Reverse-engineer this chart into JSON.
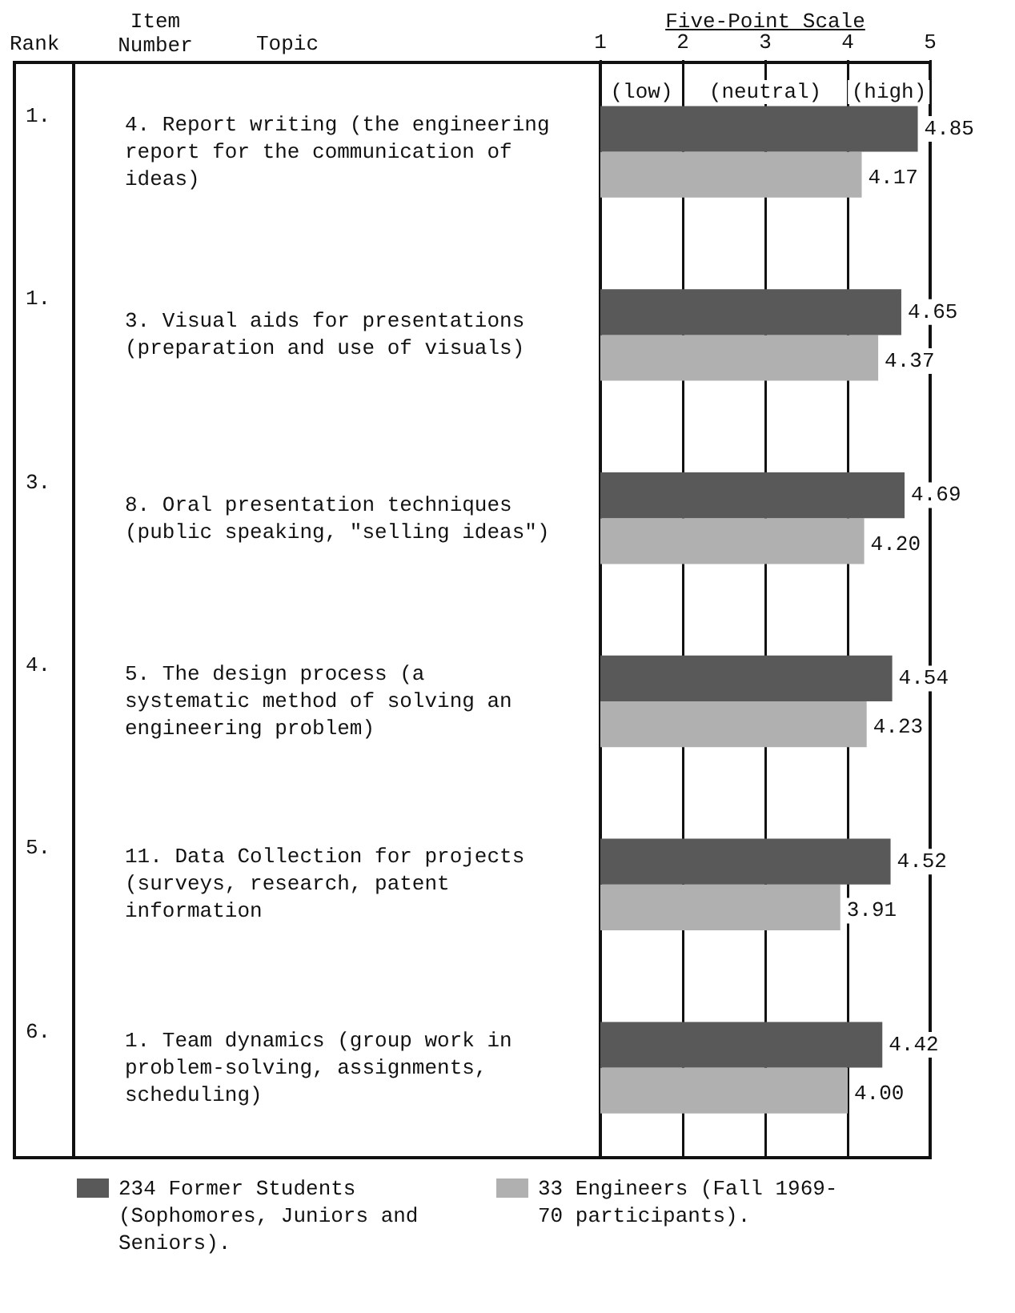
{
  "chart_data": {
    "type": "bar",
    "orientation": "horizontal",
    "xlabel": "Five-Point Scale",
    "categories": [
      "4. Report writing (the engineering report for the communication of ideas)",
      "3. Visual aids for presentations (preparation and use of visuals)",
      "8. Oral presentation techniques (public speaking, \"selling ideas\")",
      "5. The design process (a systematic method of solving an engineering problem)",
      "11. Data Collection for projects (surveys, research, patent information",
      "1. Team dynamics (group work in problem-solving, assignments, scheduling)"
    ],
    "series": [
      {
        "name": "234 Former Students (Sophomores, Juniors and Seniors).",
        "color": "#595959",
        "values": [
          4.85,
          4.65,
          4.69,
          4.54,
          4.52,
          4.42
        ],
        "value_labels": [
          "4.85",
          "4.65",
          "4.69",
          "4.54",
          "4.52",
          "4.42"
        ]
      },
      {
        "name": "33 Engineers (Fall 1969-70 participants).",
        "color": "#b0b0b0",
        "values": [
          4.17,
          4.37,
          4.2,
          4.23,
          3.91,
          4.0
        ],
        "value_labels": [
          "4.17",
          "4.37",
          "4.20",
          "4.23",
          "3.91",
          "4.00"
        ]
      }
    ],
    "xlim": [
      1,
      5
    ],
    "xticks": [
      1,
      2,
      3,
      4,
      5
    ],
    "grid": "x",
    "legend": "bottom",
    "annotations": [
      "Rank",
      "Item Number",
      "Topic",
      "(low)",
      "(neutral)",
      "(high)",
      "1.",
      "1.",
      "3.",
      "4.",
      "5.",
      "6."
    ]
  }
}
